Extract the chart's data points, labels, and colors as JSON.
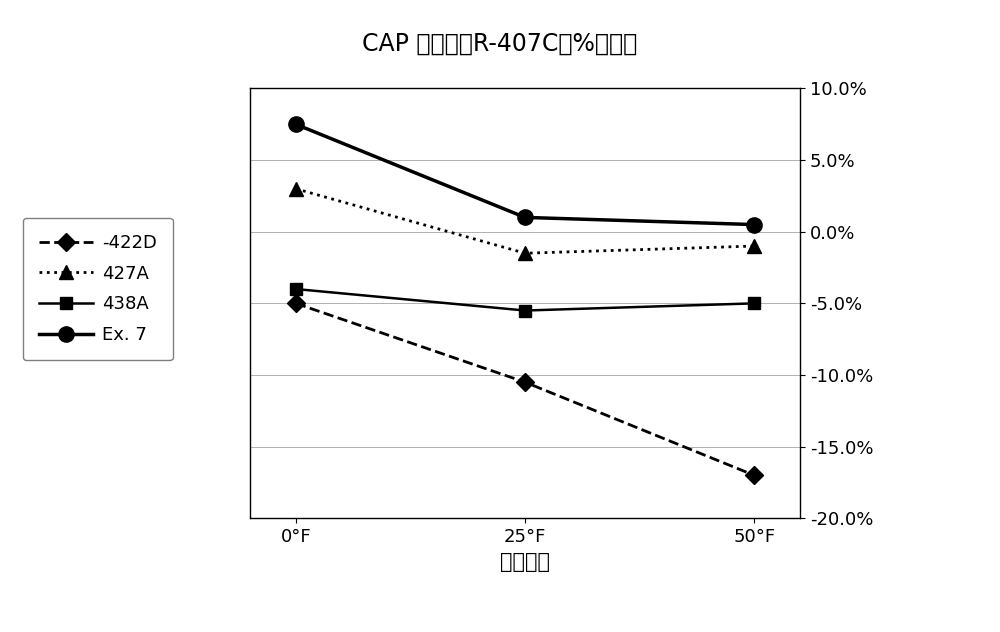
{
  "title": "CAP （相对于R-407C的%变化）",
  "xlabel": "筱内温度",
  "x_labels": [
    "0°F",
    "25°F",
    "50°F"
  ],
  "x_values": [
    0,
    25,
    50
  ],
  "series": [
    {
      "label": "-422D",
      "values": [
        -5.0,
        -10.5,
        -17.0
      ],
      "color": "#000000",
      "linestyle": "--",
      "marker": "D",
      "markersize": 9,
      "linewidth": 2.0
    },
    {
      "label": "427A",
      "values": [
        3.0,
        -1.5,
        -1.0
      ],
      "color": "#000000",
      "linestyle": ":",
      "marker": "^",
      "markersize": 10,
      "linewidth": 2.0
    },
    {
      "label": "438A",
      "values": [
        -4.0,
        -5.5,
        -5.0
      ],
      "color": "#000000",
      "linestyle": "-",
      "marker": "s",
      "markersize": 9,
      "linewidth": 1.8
    },
    {
      "label": "Ex. 7",
      "values": [
        7.5,
        1.0,
        0.5
      ],
      "color": "#000000",
      "linestyle": "-",
      "marker": "o",
      "markersize": 11,
      "linewidth": 2.5
    }
  ],
  "ylim": [
    -20.0,
    10.0
  ],
  "yticks": [
    -20.0,
    -15.0,
    -10.0,
    -5.0,
    0.0,
    5.0,
    10.0
  ],
  "background_color": "#ffffff",
  "title_fontsize": 17,
  "label_fontsize": 15,
  "tick_fontsize": 13,
  "legend_fontsize": 13
}
